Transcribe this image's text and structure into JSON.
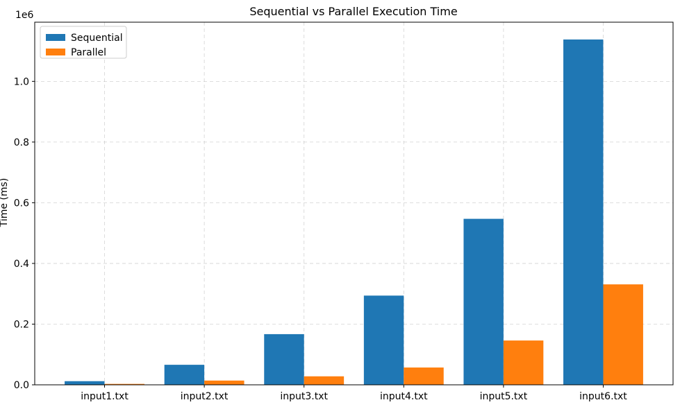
{
  "chart_data": {
    "type": "bar",
    "title": "Sequential vs Parallel Execution Time",
    "xlabel": "",
    "ylabel": "Time (ms)",
    "y_offset_label": "1e6",
    "categories": [
      "input1.txt",
      "input2.txt",
      "input3.txt",
      "input4.txt",
      "input5.txt",
      "input6.txt"
    ],
    "series": [
      {
        "name": "Sequential",
        "color": "#1f77b4",
        "values": [
          12000,
          66000,
          167000,
          294000,
          547000,
          1138000
        ]
      },
      {
        "name": "Parallel",
        "color": "#ff7f0e",
        "values": [
          3000,
          14000,
          28000,
          57000,
          146000,
          331000
        ]
      }
    ],
    "ylim": [
      0,
      1195000
    ],
    "y_ticks": [
      0,
      200000,
      400000,
      600000,
      800000,
      1000000
    ],
    "y_tick_labels": [
      "0.0",
      "0.2",
      "0.4",
      "0.6",
      "0.8",
      "1.0"
    ],
    "grid": true,
    "legend_position": "top-left"
  }
}
